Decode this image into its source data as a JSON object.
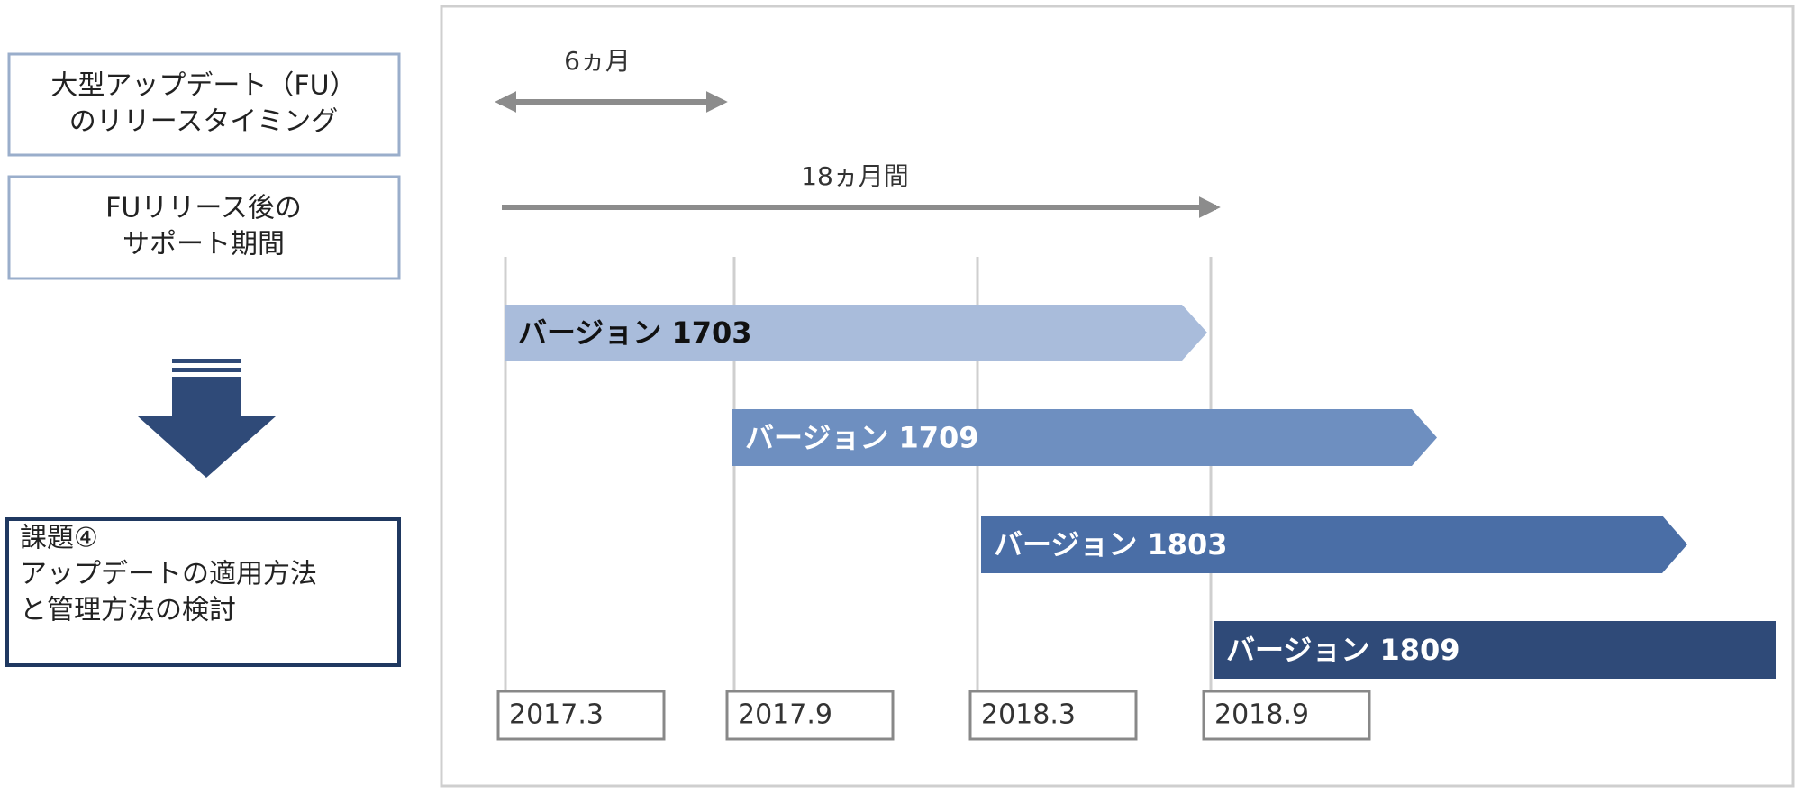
{
  "left": {
    "boxes": [
      {
        "lines": [
          "大型アップデート（FU）",
          "のリリースタイミング"
        ]
      },
      {
        "lines": [
          "FUリリース後の",
          "サポート期間"
        ]
      }
    ],
    "issue": {
      "lines": [
        "課題④",
        "アップデートの適用方法",
        "と管理方法の検討"
      ]
    }
  },
  "timeline": {
    "spans": [
      {
        "label": "6ヵ月"
      },
      {
        "label": "18ヵ月間"
      }
    ],
    "versions": [
      "バージョン 1703",
      "バージョン 1709",
      "バージョン 1803",
      "バージョン 1809"
    ],
    "dates": [
      "2017.3",
      "2017.9",
      "2018.3",
      "2018.9"
    ]
  }
}
